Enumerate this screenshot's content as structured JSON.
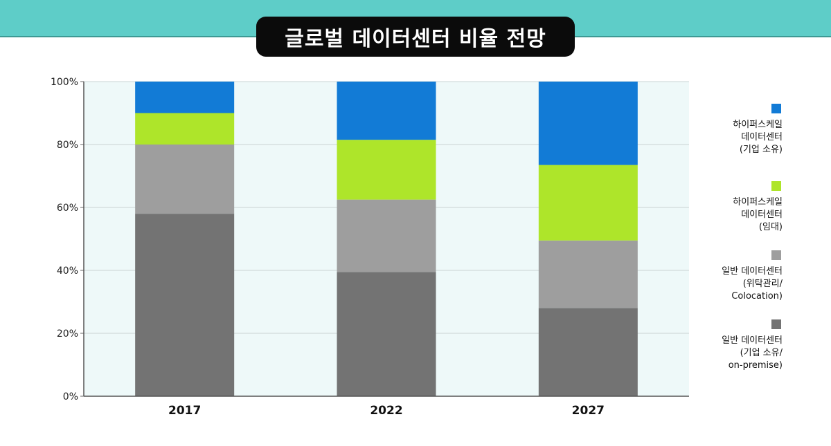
{
  "title": "글로벌 데이터센터 비율 전망",
  "colors": {
    "band": "#5ecdc8",
    "plot_bg": "#eef9f9",
    "grid": "#c9d4d4"
  },
  "chart_data": {
    "type": "bar",
    "stacked": true,
    "categories": [
      "2017",
      "2022",
      "2027"
    ],
    "ylim": [
      0,
      100
    ],
    "yticks": [
      "0%",
      "20%",
      "40%",
      "60%",
      "80%",
      "100%"
    ],
    "yunit": "%",
    "grid": true,
    "legend_position": "right",
    "series": [
      {
        "name": "일반 데이터센터 (기업 소유/ on-premise)",
        "label": "일반 데이터센터\n(기업 소유/\non-premise)",
        "color": "#737373",
        "values": [
          58,
          39.5,
          28
        ]
      },
      {
        "name": "일반 데이터센터 (위탁관리/ Colocation)",
        "label": "일반 데이터센터\n(위탁관리/\nColocation)",
        "color": "#9e9e9e",
        "values": [
          22,
          23,
          21.5
        ]
      },
      {
        "name": "하이퍼스케일 데이터센터 (임대)",
        "label": "하이퍼스케일\n데이터센터\n(임대)",
        "color": "#aee52a",
        "values": [
          10,
          19,
          24
        ]
      },
      {
        "name": "하이퍼스케일 데이터센터 (기업 소유)",
        "label": "하이퍼스케일\n데이터센터\n(기업 소유)",
        "color": "#127bd6",
        "values": [
          10,
          18.5,
          26.5
        ]
      }
    ]
  }
}
